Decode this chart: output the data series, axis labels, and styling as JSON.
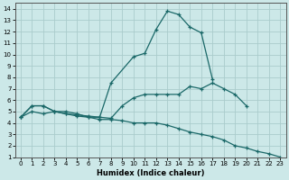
{
  "title": "",
  "xlabel": "Humidex (Indice chaleur)",
  "bg_color": "#cce8e8",
  "line_color": "#1a6868",
  "grid_color": "#aacccc",
  "xlim": [
    -0.5,
    23.5
  ],
  "ylim": [
    1,
    14.5
  ],
  "xticks": [
    0,
    1,
    2,
    3,
    4,
    5,
    6,
    7,
    8,
    9,
    10,
    11,
    12,
    13,
    14,
    15,
    16,
    17,
    18,
    19,
    20,
    21,
    22,
    23
  ],
  "yticks": [
    1,
    2,
    3,
    4,
    5,
    6,
    7,
    8,
    9,
    10,
    11,
    12,
    13,
    14
  ],
  "series": [
    {
      "x": [
        0,
        1,
        2,
        3,
        4,
        5,
        6,
        7,
        8,
        10,
        11,
        12,
        13,
        14,
        15,
        16,
        17
      ],
      "y": [
        4.5,
        5.5,
        5.5,
        5.0,
        5.0,
        4.8,
        4.5,
        4.5,
        7.5,
        9.8,
        10.1,
        12.2,
        13.8,
        13.5,
        12.4,
        11.9,
        7.8
      ]
    },
    {
      "x": [
        0,
        1,
        2,
        3,
        4,
        5,
        6,
        7,
        8,
        9,
        10,
        11,
        12,
        13,
        14,
        15,
        16,
        17,
        18,
        19,
        20
      ],
      "y": [
        4.5,
        5.5,
        5.5,
        5.0,
        4.8,
        4.7,
        4.6,
        4.5,
        4.4,
        5.5,
        6.2,
        6.5,
        6.5,
        6.5,
        6.5,
        7.2,
        7.0,
        7.5,
        7.0,
        6.5,
        5.5
      ]
    },
    {
      "x": [
        0,
        1,
        2,
        3,
        4,
        5,
        6,
        7,
        8,
        9,
        10,
        11,
        12,
        13,
        14,
        15,
        16,
        17,
        18,
        19,
        20,
        21,
        22,
        23
      ],
      "y": [
        4.5,
        5.0,
        4.8,
        5.0,
        4.8,
        4.6,
        4.5,
        4.3,
        4.3,
        4.2,
        4.0,
        4.0,
        4.0,
        3.8,
        3.5,
        3.2,
        3.0,
        2.8,
        2.5,
        2.0,
        1.8,
        1.5,
        1.3,
        1.0
      ]
    }
  ]
}
